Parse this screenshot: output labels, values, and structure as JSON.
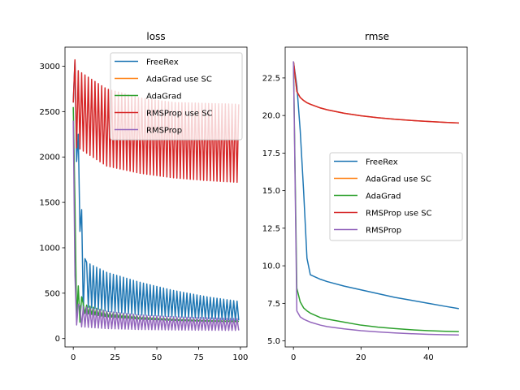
{
  "chart_data": [
    {
      "type": "line",
      "title": "loss",
      "xlabel": "",
      "ylabel": "",
      "xlim": [
        -4.95,
        103.95
      ],
      "ylim": [
        -92,
        3210
      ],
      "xticks": [
        0,
        25,
        50,
        75,
        100
      ],
      "yticks": [
        0,
        500,
        1000,
        1500,
        2000,
        2500,
        3000
      ],
      "legend_position": "upper-right",
      "grid": false,
      "series": [
        {
          "name": "FreeRex",
          "color": "#1f77b4",
          "shape": "alternating",
          "x_start": 0,
          "x_end": 99,
          "first_points": [
            [
              0,
              2600
            ],
            [
              1,
              3060
            ],
            [
              2,
              1950
            ],
            [
              3,
              2250
            ],
            [
              4,
              1180
            ],
            [
              5,
              1420
            ],
            [
              6,
              300
            ],
            [
              7,
              880
            ]
          ],
          "upper_envelope": [
            [
              8,
              840
            ],
            [
              20,
              730
            ],
            [
              40,
              620
            ],
            [
              60,
              530
            ],
            [
              80,
              460
            ],
            [
              99,
              410
            ]
          ],
          "lower_envelope": [
            [
              8,
              350
            ],
            [
              20,
              300
            ],
            [
              40,
              260
            ],
            [
              60,
              240
            ],
            [
              80,
              220
            ],
            [
              99,
              200
            ]
          ]
        },
        {
          "name": "AdaGrad use SC",
          "color": "#ff7f0e",
          "shape": "hidden",
          "note": "overlaid by later series"
        },
        {
          "name": "AdaGrad",
          "color": "#2ca02c",
          "shape": "alternating",
          "x_start": 0,
          "x_end": 99,
          "first_points": [
            [
              0,
              2550
            ],
            [
              1,
              1500
            ],
            [
              2,
              200
            ],
            [
              3,
              580
            ],
            [
              4,
              180
            ],
            [
              5,
              460
            ]
          ],
          "upper_envelope": [
            [
              6,
              380
            ],
            [
              20,
              300
            ],
            [
              40,
              250
            ],
            [
              60,
              225
            ],
            [
              80,
              210
            ],
            [
              99,
              200
            ]
          ],
          "lower_envelope": [
            [
              6,
              280
            ],
            [
              20,
              240
            ],
            [
              40,
              215
            ],
            [
              60,
              200
            ],
            [
              80,
              190
            ],
            [
              99,
              185
            ]
          ]
        },
        {
          "name": "RMSProp use SC",
          "color": "#d62728",
          "shape": "alternating",
          "x_start": 0,
          "x_end": 99,
          "first_points": [
            [
              0,
              2600
            ],
            [
              1,
              3070
            ],
            [
              2,
              2100
            ]
          ],
          "upper_envelope": [
            [
              3,
              2950
            ],
            [
              20,
              2750
            ],
            [
              40,
              2650
            ],
            [
              60,
              2600
            ],
            [
              80,
              2590
            ],
            [
              99,
              2580
            ]
          ],
          "lower_envelope": [
            [
              3,
              2100
            ],
            [
              20,
              1900
            ],
            [
              40,
              1820
            ],
            [
              60,
              1770
            ],
            [
              80,
              1740
            ],
            [
              99,
              1720
            ]
          ]
        },
        {
          "name": "RMSProp",
          "color": "#9467bd",
          "shape": "alternating",
          "x_start": 0,
          "x_end": 99,
          "first_points": [
            [
              0,
              2400
            ],
            [
              1,
              700
            ],
            [
              2,
              150
            ],
            [
              3,
              380
            ]
          ],
          "upper_envelope": [
            [
              4,
              360
            ],
            [
              20,
              300
            ],
            [
              40,
              260
            ],
            [
              60,
              240
            ],
            [
              80,
              230
            ],
            [
              99,
              220
            ]
          ],
          "lower_envelope": [
            [
              4,
              130
            ],
            [
              20,
              110
            ],
            [
              40,
              100
            ],
            [
              60,
              95
            ],
            [
              80,
              92
            ],
            [
              99,
              90
            ]
          ]
        }
      ]
    },
    {
      "type": "line",
      "title": "rmse",
      "xlabel": "",
      "ylabel": "",
      "xlim": [
        -2.45,
        51.45
      ],
      "ylim": [
        4.6,
        24.55
      ],
      "xticks": [
        0,
        20,
        40
      ],
      "yticks": [
        5.0,
        7.5,
        10.0,
        12.5,
        15.0,
        17.5,
        20.0,
        22.5
      ],
      "ytick_labels": [
        "5.0",
        "7.5",
        "10.0",
        "12.5",
        "15.0",
        "17.5",
        "20.0",
        "22.5"
      ],
      "legend_position": "center-right",
      "grid": false,
      "series": [
        {
          "name": "FreeRex",
          "color": "#1f77b4",
          "x": [
            0,
            1,
            2,
            3,
            4,
            5,
            8,
            10,
            15,
            20,
            25,
            30,
            35,
            40,
            45,
            49
          ],
          "y": [
            23.6,
            22.0,
            19.0,
            15.0,
            10.5,
            9.4,
            9.1,
            8.95,
            8.65,
            8.4,
            8.15,
            7.9,
            7.7,
            7.5,
            7.3,
            7.15
          ]
        },
        {
          "name": "AdaGrad use SC",
          "color": "#ff7f0e",
          "x": [
            0,
            1,
            2,
            3,
            4,
            5,
            8,
            10,
            15,
            20,
            25,
            30,
            35,
            40,
            45,
            49
          ],
          "y": [
            23.6,
            21.6,
            21.2,
            21.0,
            20.85,
            20.75,
            20.5,
            20.38,
            20.15,
            19.98,
            19.85,
            19.75,
            19.67,
            19.6,
            19.54,
            19.5
          ]
        },
        {
          "name": "AdaGrad",
          "color": "#2ca02c",
          "x": [
            0,
            1,
            2,
            3,
            4,
            5,
            8,
            10,
            15,
            20,
            25,
            30,
            35,
            40,
            45,
            49
          ],
          "y": [
            23.6,
            8.5,
            7.6,
            7.2,
            7.0,
            6.85,
            6.55,
            6.45,
            6.25,
            6.05,
            5.92,
            5.82,
            5.74,
            5.68,
            5.64,
            5.62
          ]
        },
        {
          "name": "RMSProp use SC",
          "color": "#d62728",
          "x": [
            0,
            1,
            2,
            3,
            4,
            5,
            8,
            10,
            15,
            20,
            25,
            30,
            35,
            40,
            45,
            49
          ],
          "y": [
            23.6,
            21.6,
            21.2,
            21.0,
            20.85,
            20.75,
            20.5,
            20.38,
            20.15,
            19.98,
            19.85,
            19.75,
            19.67,
            19.6,
            19.54,
            19.5
          ]
        },
        {
          "name": "RMSProp",
          "color": "#9467bd",
          "x": [
            0,
            1,
            2,
            3,
            4,
            5,
            8,
            10,
            15,
            20,
            25,
            30,
            35,
            40,
            45,
            49
          ],
          "y": [
            23.6,
            7.0,
            6.6,
            6.45,
            6.35,
            6.25,
            6.05,
            5.95,
            5.8,
            5.68,
            5.6,
            5.53,
            5.48,
            5.44,
            5.41,
            5.4
          ]
        }
      ]
    }
  ]
}
